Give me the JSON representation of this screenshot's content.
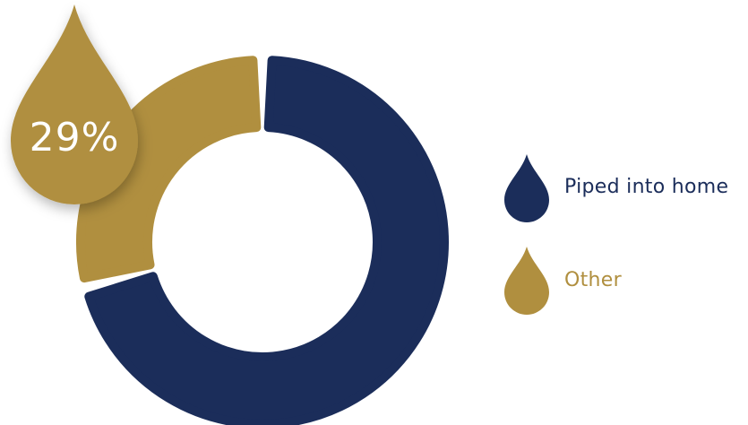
{
  "chart_data": {
    "type": "pie",
    "style": "donut",
    "highlight_label": "29%",
    "slices": [
      {
        "label": "Piped into home",
        "value": 71,
        "color": "#1b2d5a"
      },
      {
        "label": "Other",
        "value": 29,
        "color": "#b08f3f"
      }
    ],
    "legend": [
      {
        "label": "Piped into home",
        "color": "#1b2d5a",
        "icon": "water-drop-icon"
      },
      {
        "label": "Other",
        "color": "#b08f3f",
        "icon": "water-drop-icon"
      }
    ],
    "legend_position": "right"
  }
}
